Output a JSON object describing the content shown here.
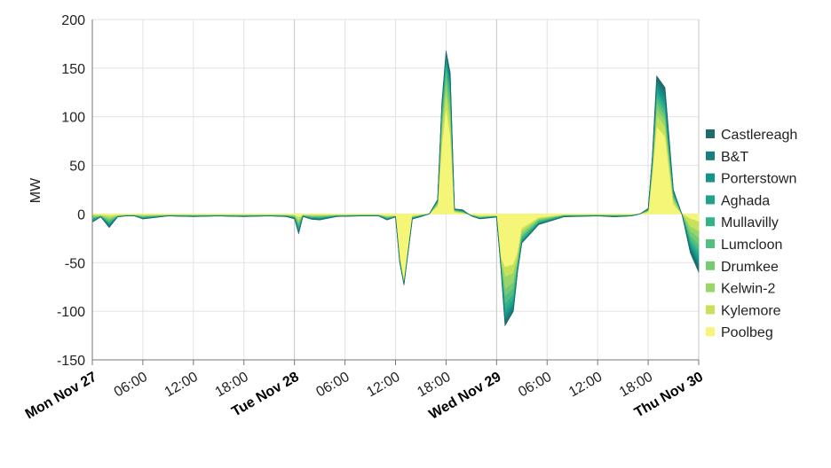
{
  "chart_data": {
    "type": "area",
    "ylabel": "MW",
    "ylim": [
      -150,
      200
    ],
    "yticks": [
      200,
      150,
      100,
      50,
      0,
      -50,
      -100,
      -150
    ],
    "xlim": [
      0,
      72
    ],
    "grid": true,
    "legend_position": "right",
    "x_ticks": [
      {
        "x": 0,
        "label": "Mon Nov 27",
        "major": true
      },
      {
        "x": 6,
        "label": "06:00",
        "major": false
      },
      {
        "x": 12,
        "label": "12:00",
        "major": false
      },
      {
        "x": 18,
        "label": "18:00",
        "major": false
      },
      {
        "x": 24,
        "label": "Tue Nov 28",
        "major": true
      },
      {
        "x": 30,
        "label": "06:00",
        "major": false
      },
      {
        "x": 36,
        "label": "12:00",
        "major": false
      },
      {
        "x": 42,
        "label": "18:00",
        "major": false
      },
      {
        "x": 48,
        "label": "Wed Nov 29",
        "major": true
      },
      {
        "x": 54,
        "label": "06:00",
        "major": false
      },
      {
        "x": 60,
        "label": "12:00",
        "major": false
      },
      {
        "x": 66,
        "label": "18:00",
        "major": false
      },
      {
        "x": 72,
        "label": "Thu Nov 30",
        "major": true
      }
    ],
    "series_stack_order": [
      "Poolbeg",
      "Kylemore",
      "Kelwin-2",
      "Drumkee",
      "Lumcloon",
      "Mullavilly",
      "Aghada",
      "Porterstown",
      "B&T",
      "Castlereagh"
    ],
    "legend": [
      "Castlereagh",
      "B&T",
      "Porterstown",
      "Aghada",
      "Mullavilly",
      "Lumcloon",
      "Drumkee",
      "Kelwin-2",
      "Kylemore",
      "Poolbeg"
    ],
    "colors": {
      "Castlereagh": "#1f6b6e",
      "B&T": "#17807a",
      "Porterstown": "#15928a",
      "Aghada": "#20a38b",
      "Mullavilly": "#32b28a",
      "Lumcloon": "#52bf7f",
      "Drumkee": "#75cb74",
      "Kelwin-2": "#9ad567",
      "Kylemore": "#c7e25a",
      "Poolbeg": "#f5f577"
    },
    "x": [
      0,
      1,
      2,
      3,
      4,
      5,
      6,
      9,
      12,
      15,
      18,
      21,
      23,
      24,
      24.5,
      25,
      26,
      27,
      29,
      32,
      34,
      35,
      36,
      36.5,
      37,
      38,
      39,
      40,
      41,
      41.5,
      42,
      42.5,
      43,
      44,
      45,
      46,
      47,
      48,
      48.5,
      49,
      50,
      50.5,
      51,
      53,
      56,
      60,
      62,
      64,
      65,
      66,
      66.5,
      67,
      68,
      69,
      70,
      71,
      72
    ],
    "total": [
      -8,
      -3,
      -13,
      -3,
      -2,
      -2,
      -5,
      -2,
      -3,
      -2,
      -3,
      -2,
      -3,
      -5,
      -20,
      -3,
      -6,
      -7,
      -3,
      -2,
      -2,
      -6,
      -3,
      -50,
      -73,
      -5,
      -3,
      0,
      15,
      115,
      168,
      145,
      5,
      4,
      -2,
      -5,
      -4,
      -3,
      -55,
      -115,
      -100,
      -60,
      -30,
      -10,
      -3,
      -2,
      -3,
      -2,
      0,
      5,
      60,
      142,
      130,
      25,
      0,
      -40,
      -60
    ],
    "series": [
      {
        "name": "Poolbeg",
        "values": [
          -1,
          -1,
          -2,
          -1,
          -1,
          -1,
          -1,
          -1,
          -1,
          -1,
          -1,
          -1,
          -1,
          -1,
          -4,
          -1,
          -1,
          -1,
          -1,
          -1,
          -1,
          -2,
          -2,
          -45,
          -70,
          -2,
          -1,
          0,
          8,
          70,
          110,
          80,
          2,
          1,
          -1,
          -2,
          -2,
          -2,
          -45,
          -55,
          -52,
          -40,
          -15,
          -4,
          -1,
          -1,
          -1,
          -1,
          0,
          2,
          40,
          90,
          80,
          10,
          0,
          -5,
          -8
        ]
      },
      {
        "name": "Kylemore",
        "values": [
          -1,
          -1,
          -2,
          -1,
          -0.3,
          -0.3,
          -1,
          -0.3,
          -0.3,
          -0.3,
          -0.3,
          -0.3,
          -0.3,
          -1,
          -3,
          -0.3,
          -1,
          -1,
          -0.3,
          -0.2,
          -0.2,
          -1,
          -0.2,
          -1,
          -1,
          -1,
          -0.2,
          0,
          2,
          15,
          15,
          15,
          1,
          0.5,
          -0.2,
          -1,
          -0.5,
          -0.2,
          -3,
          -10,
          -9,
          -5,
          -3,
          -1,
          -0.3,
          -0.2,
          -0.3,
          -0.2,
          0,
          1,
          6,
          12,
          10,
          4,
          0,
          -8,
          -10
        ]
      },
      {
        "name": "Kelwin-2",
        "values": [
          -1,
          -0.3,
          -1.5,
          -0.3,
          -0.2,
          -0.2,
          -0.5,
          -0.2,
          -0.3,
          -0.2,
          -0.3,
          -0.2,
          -0.3,
          -0.5,
          -2,
          -0.3,
          -0.5,
          -0.6,
          -0.3,
          -0.2,
          -0.2,
          -0.5,
          -0.2,
          -1,
          -0.5,
          -0.5,
          -0.3,
          0,
          1,
          8,
          10,
          10,
          0.5,
          0.5,
          -0.2,
          -0.5,
          -0.3,
          -0.2,
          -2,
          -12,
          -10,
          -4,
          -3,
          -1,
          -0.3,
          -0.2,
          -0.3,
          -0.2,
          0,
          0.5,
          3,
          7,
          6,
          2,
          0,
          -5,
          -7
        ]
      },
      {
        "name": "Drumkee",
        "values": [
          -1,
          -0.2,
          -1.5,
          -0.2,
          -0.1,
          -0.1,
          -0.5,
          -0.1,
          -0.2,
          -0.1,
          -0.2,
          -0.1,
          -0.2,
          -0.5,
          -2,
          -0.2,
          -0.5,
          -0.6,
          -0.2,
          -0.1,
          -0.1,
          -0.5,
          -0.1,
          -0.5,
          -0.3,
          -0.2,
          -0.2,
          0,
          1,
          5,
          8,
          9,
          0.3,
          0.3,
          -0.1,
          -0.3,
          -0.2,
          -0.1,
          -1,
          -8,
          -6,
          -3,
          -2,
          -1,
          -0.2,
          -0.1,
          -0.2,
          -0.1,
          0,
          0.3,
          2,
          6,
          5,
          2,
          0,
          -5,
          -7
        ]
      },
      {
        "name": "Lumcloon",
        "values": [
          -1,
          -0.1,
          -1.5,
          -0.1,
          -0.1,
          -0.1,
          -0.5,
          -0.1,
          -0.2,
          -0.1,
          -0.2,
          -0.1,
          -0.2,
          -0.4,
          -2,
          -0.2,
          -0.5,
          -0.6,
          -0.2,
          -0.1,
          -0.1,
          -0.5,
          -0.1,
          -0.5,
          -0.3,
          -0.2,
          -0.2,
          0,
          0.5,
          5,
          7,
          7,
          0.3,
          0.3,
          -0.1,
          -0.2,
          -0.2,
          -0.1,
          -1,
          -8,
          -6,
          -2,
          -2,
          -1,
          -0.2,
          -0.1,
          -0.2,
          -0.1,
          0,
          0.3,
          2,
          5,
          5,
          2,
          0,
          -4,
          -6
        ]
      },
      {
        "name": "Mullavilly",
        "values": [
          -1,
          -0.1,
          -1.5,
          -0.1,
          -0.1,
          -0.1,
          -0.5,
          -0.1,
          -0.2,
          -0.1,
          -0.2,
          -0.1,
          -0.2,
          -0.4,
          -2,
          -0.2,
          -0.5,
          -0.6,
          -0.2,
          -0.1,
          -0.1,
          -0.5,
          -0.1,
          -0.5,
          -0.3,
          -0.2,
          -0.2,
          0,
          0.5,
          4,
          6,
          6,
          0.3,
          0.3,
          -0.1,
          -0.2,
          -0.2,
          -0.1,
          -1,
          -6,
          -5,
          -2,
          -2,
          -1,
          -0.2,
          -0.1,
          -0.2,
          -0.1,
          0,
          0.3,
          2,
          5,
          5,
          1,
          0,
          -3,
          -5
        ]
      },
      {
        "name": "Aghada",
        "values": [
          -1,
          -0.1,
          -1,
          -0.1,
          -0.1,
          -0.1,
          -0.5,
          -0.1,
          -0.2,
          -0.1,
          -0.2,
          -0.1,
          -0.2,
          -0.4,
          -2,
          -0.2,
          -0.5,
          -0.6,
          -0.2,
          -0.1,
          -0.1,
          -0.5,
          -0.1,
          -0.5,
          -0.2,
          -0.2,
          -0.2,
          0,
          0.5,
          3,
          4,
          5,
          0.2,
          0.3,
          -0.1,
          -0.2,
          -0.2,
          -0.1,
          -0.5,
          -5,
          -4,
          -1,
          -1,
          -0.5,
          -0.2,
          -0.1,
          -0.2,
          -0.1,
          0,
          0.3,
          2,
          4,
          4,
          1,
          0,
          -3,
          -4
        ]
      },
      {
        "name": "Porterstown",
        "values": [
          -0.5,
          -0.1,
          -1,
          -0.1,
          -0.05,
          -0.05,
          -0.3,
          -0.05,
          -0.1,
          -0.05,
          -0.1,
          -0.05,
          -0.1,
          -0.3,
          -1.5,
          -0.1,
          -0.3,
          -0.4,
          -0.1,
          -0.1,
          -0.1,
          -0.3,
          -0.1,
          -0.3,
          -0.2,
          -0.3,
          -0.2,
          0,
          0.5,
          2,
          3,
          4,
          0.2,
          0.3,
          -0.1,
          -0.2,
          -0.2,
          -0.1,
          -0.5,
          -4,
          -3,
          -1,
          -1,
          -0.5,
          -0.2,
          -0.1,
          -0.2,
          -0.1,
          0,
          0.3,
          1,
          5,
          5,
          1,
          0,
          -2,
          -4
        ]
      },
      {
        "name": "B&T",
        "values": [
          -0.5,
          -0.1,
          -1,
          -0.1,
          -0.05,
          -0.05,
          -0.2,
          -0.05,
          -0.1,
          -0.05,
          -0.1,
          -0.05,
          -0.1,
          -0.3,
          -1,
          -0.1,
          -0.3,
          -0.4,
          -0.1,
          -0.1,
          -0.1,
          -0.2,
          -0.1,
          -0.3,
          -0.1,
          -0.3,
          -0.2,
          0,
          0.5,
          2,
          3,
          5,
          0.2,
          0.3,
          -0.1,
          -0.2,
          -0.2,
          -0.1,
          -0.5,
          -4,
          -3,
          -1,
          -0.5,
          -0.5,
          -0.2,
          -0.1,
          -0.2,
          -0.1,
          0,
          0.3,
          1,
          4,
          5,
          1,
          0,
          -2,
          -4
        ]
      },
      {
        "name": "Castlereagh",
        "values": [
          -0.5,
          -0.1,
          -1,
          -0.1,
          -0.05,
          -0.05,
          -0.2,
          -0.05,
          -0.1,
          -0.05,
          -0.1,
          -0.05,
          -0.1,
          -0.3,
          -1,
          -0.1,
          -0.3,
          -0.4,
          -0.1,
          -0.1,
          -0.1,
          -0.2,
          -0.1,
          -0.2,
          -0.1,
          -0.3,
          -0.2,
          0,
          0.5,
          1,
          2,
          4,
          0.3,
          0.5,
          -0.2,
          -0.3,
          -0.3,
          -0.2,
          -0.5,
          -3,
          -2,
          -0.5,
          -0.5,
          -0.5,
          -0.2,
          -0.1,
          -0.2,
          -0.1,
          0,
          0.5,
          1,
          4,
          5,
          1,
          0,
          -3,
          -5
        ]
      }
    ]
  }
}
